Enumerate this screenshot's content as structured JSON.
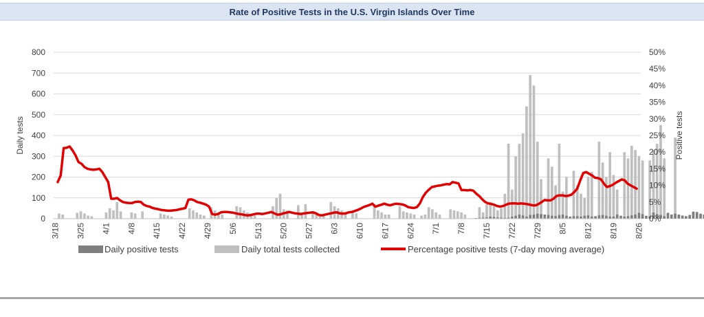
{
  "chart_data": {
    "type": "bar",
    "title": "Rate of Positive Tests in the U.S. Virgin Islands Over Time",
    "ylabel": "Daily tests",
    "y2label": "Positive tests",
    "ylim": [
      0,
      800
    ],
    "y2lim": [
      0,
      50
    ],
    "yticks": [
      "0",
      "100",
      "200",
      "300",
      "400",
      "500",
      "600",
      "700",
      "800"
    ],
    "y2ticks": [
      "0%",
      "5%",
      "10%",
      "15%",
      "20%",
      "25%",
      "30%",
      "35%",
      "40%",
      "45%",
      "50%"
    ],
    "start_date": "2020-03-18",
    "xtick_labels": [
      "3/18",
      "3/25",
      "4/1",
      "4/8",
      "4/15",
      "4/22",
      "4/29",
      "5/6",
      "5/13",
      "5/20",
      "5/27",
      "6/3",
      "6/10",
      "6/17",
      "6/24",
      "7/1",
      "7/8",
      "7/15",
      "7/22",
      "7/29",
      "8/5",
      "8/12",
      "8/19",
      "8/26"
    ],
    "legend_position": "bottom",
    "series": [
      {
        "name": "Daily positive tests",
        "color": "#7f7f7f",
        "values": [
          1,
          1,
          1,
          1,
          2,
          1,
          1,
          1,
          1,
          1,
          1,
          1,
          1,
          1,
          1,
          1,
          1,
          1,
          2,
          1,
          1,
          1,
          1,
          1,
          1,
          1,
          1,
          1,
          1,
          1,
          1,
          1,
          1,
          1,
          1,
          1,
          1,
          1,
          1,
          1,
          1,
          1,
          1,
          1,
          1,
          1,
          1,
          1,
          1,
          1,
          1,
          1,
          1,
          1,
          1,
          1,
          1,
          1,
          1,
          1,
          1,
          1,
          1,
          1,
          1,
          1,
          1,
          1,
          1,
          1,
          1,
          1,
          1,
          1,
          1,
          1,
          1,
          1,
          1,
          1,
          1,
          1,
          1,
          1,
          1,
          1,
          1,
          1,
          1,
          1,
          1,
          1,
          1,
          1,
          1,
          1,
          1,
          1,
          1,
          1,
          1,
          1,
          1,
          1,
          1,
          1,
          1,
          1,
          1,
          1,
          1,
          1,
          1,
          1,
          1,
          2,
          3,
          4,
          5,
          6,
          10,
          8,
          6,
          5,
          4,
          5,
          10,
          14,
          20,
          16,
          10,
          18,
          20,
          24,
          22,
          20,
          18,
          14,
          12,
          18,
          20,
          14,
          10,
          12,
          12,
          10,
          14,
          16,
          10,
          12,
          16,
          18,
          14,
          10,
          10,
          20,
          14,
          10,
          12,
          16,
          20,
          28,
          22,
          14,
          10,
          30,
          22,
          18,
          12,
          28,
          20,
          24,
          20,
          15,
          12,
          18,
          34,
          32,
          24,
          20,
          16,
          22,
          20,
          16,
          14,
          18,
          20,
          16,
          10,
          55,
          52,
          40,
          30,
          28,
          36,
          32,
          26,
          24,
          22,
          26,
          28,
          36,
          38,
          34,
          30,
          26,
          20,
          18,
          24,
          20,
          10
        ]
      },
      {
        "name": "Daily total tests collected",
        "color": "#bfbfbf",
        "values": [
          0,
          25,
          20,
          0,
          0,
          0,
          28,
          35,
          25,
          15,
          12,
          0,
          0,
          0,
          30,
          50,
          40,
          80,
          35,
          0,
          0,
          30,
          25,
          0,
          35,
          0,
          0,
          0,
          0,
          25,
          20,
          15,
          10,
          0,
          0,
          0,
          0,
          50,
          40,
          30,
          20,
          15,
          0,
          55,
          40,
          30,
          20,
          0,
          0,
          0,
          60,
          55,
          40,
          30,
          20,
          15,
          0,
          0,
          0,
          0,
          60,
          100,
          120,
          45,
          40,
          0,
          0,
          65,
          30,
          70,
          0,
          30,
          20,
          10,
          15,
          0,
          80,
          60,
          50,
          40,
          20,
          0,
          30,
          25,
          0,
          0,
          0,
          0,
          70,
          40,
          30,
          20,
          20,
          0,
          0,
          60,
          35,
          30,
          25,
          20,
          0,
          15,
          20,
          55,
          45,
          30,
          20,
          0,
          0,
          45,
          40,
          35,
          30,
          20,
          0,
          0,
          0,
          55,
          30,
          70,
          80,
          60,
          40,
          50,
          120,
          360,
          140,
          300,
          360,
          410,
          540,
          690,
          640,
          370,
          190,
          0,
          290,
          250,
          160,
          360,
          130,
          200,
          0,
          230,
          160,
          120,
          100,
          200,
          225,
          0,
          370,
          270,
          200,
          320,
          210,
          140,
          0,
          320,
          290,
          350,
          330,
          300,
          280,
          0,
          280,
          330,
          360,
          450,
          290,
          0,
          0,
          390,
          20
        ],
        "values_note": ""
      },
      {
        "name": "Percentage positive tests (7-day moving average)",
        "color": "#e00000",
        "type": "line",
        "axis": "y2",
        "values": [
          11,
          13,
          21.2,
          21.3,
          21.7,
          20.5,
          19,
          17,
          16.5,
          15.5,
          15,
          14.8,
          14.7,
          14.8,
          15,
          14,
          12.5,
          11,
          6,
          6,
          6.2,
          5.5,
          5,
          4.8,
          4.7,
          4.7,
          5,
          5.1,
          5,
          4.2,
          3.8,
          3.6,
          3.2,
          3,
          2.8,
          2.6,
          2.5,
          2.4,
          2.4,
          2.5,
          2.6,
          2.8,
          3,
          3.2,
          5.7,
          5.8,
          5.5,
          5,
          4.8,
          4.5,
          4.2,
          3.6,
          1.4,
          1.2,
          1.4,
          1.9,
          2,
          2,
          1.9,
          1.8,
          1.6,
          1.4,
          1.3,
          1.1,
          1,
          1.1,
          1.3,
          1.5,
          1.5,
          1.4,
          1.6,
          1.8,
          2,
          1.6,
          1.2,
          1.3,
          1.6,
          1.8,
          2,
          1.8,
          1.6,
          1.5,
          1.4,
          1.6,
          1.7,
          1.8,
          1.9,
          1.6,
          1.1,
          1,
          1.2,
          1.4,
          1.6,
          1.8,
          1.9,
          1.6,
          1.5,
          1.6,
          1.9,
          2,
          2.3,
          2.6,
          3,
          3.5,
          3.8,
          4.1,
          4.5,
          3.6,
          3.9,
          4.2,
          4.5,
          4.2,
          4,
          4.3,
          4.5,
          4.4,
          4.3,
          4,
          3.5,
          3.3,
          3.2,
          3.5,
          4.6,
          6.5,
          7.8,
          8.7,
          9.5,
          9.7,
          9.9,
          10,
          10.2,
          10.4,
          10.3,
          11,
          10.8,
          10.6,
          8.6,
          8.6,
          8.5,
          8.6,
          8.4,
          7.5,
          6.8,
          5.8,
          5,
          4.6,
          4.4,
          4.2,
          3.8,
          3.6,
          3.8,
          4.2,
          4.5,
          4.6,
          4.6,
          4.5,
          4.6,
          4.5,
          4.4,
          4.2,
          4,
          4,
          4.4,
          5,
          5.6,
          5.5,
          5.5,
          6,
          6.8,
          7,
          7,
          6.8,
          6.9,
          7.2,
          8,
          9,
          11.5,
          13.7,
          14,
          13.5,
          13,
          12.3,
          12.2,
          11.8,
          10.5,
          9.5,
          9.8,
          10.2,
          10.8,
          11.3,
          11.8,
          11.5,
          10.5,
          10,
          9.5,
          9
        ]
      }
    ]
  }
}
